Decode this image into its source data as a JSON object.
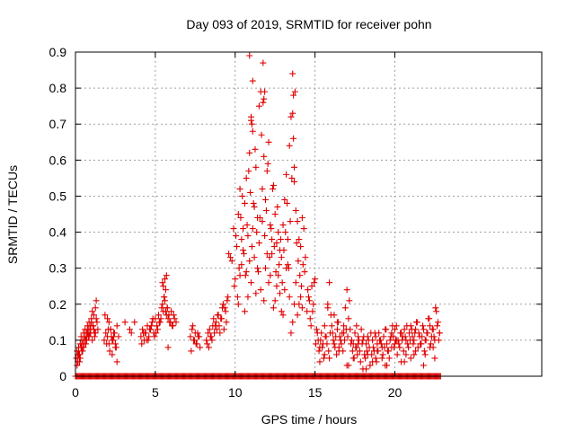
{
  "chart_data": {
    "type": "scatter",
    "title": "Day 093 of 2019, SRMTID for receiver pohn",
    "xlabel": "GPS time / hours",
    "ylabel": "SRMTID / TECUs",
    "xlim": [
      0,
      29.2
    ],
    "ylim": [
      0,
      0.9
    ],
    "xticks": [
      0,
      5,
      10,
      15,
      20
    ],
    "xtick_labels": [
      "0",
      "5",
      "10",
      "15",
      "20"
    ],
    "yticks": [
      0,
      0.1,
      0.2,
      0.3,
      0.4,
      0.5,
      0.6,
      0.7,
      0.8,
      0.9
    ],
    "ytick_labels": [
      "0",
      "0.1",
      "0.2",
      "0.3",
      "0.4",
      "0.5",
      "0.6",
      "0.7",
      "0.8",
      "0.9"
    ],
    "grid": true,
    "marker": "+",
    "series": [
      {
        "name": "SRMTID",
        "color": "#e00000",
        "x": [
          0.05,
          0.1,
          0.15,
          0.2,
          0.25,
          0.3,
          0.35,
          0.4,
          0.45,
          0.5,
          0.55,
          0.6,
          0.65,
          0.7,
          0.75,
          0.8,
          0.85,
          0.9,
          0.95,
          1.0,
          1.05,
          1.1,
          1.15,
          1.2,
          1.25,
          1.3,
          1.35,
          1.4,
          0.1,
          0.2,
          0.3,
          0.4,
          0.5,
          0.6,
          0.7,
          0.8,
          0.9,
          1.0,
          1.1,
          1.2,
          1.3,
          0.15,
          0.25,
          0.35,
          0.45,
          0.55,
          0.65,
          0.75,
          0.85,
          0.95,
          1.05,
          1.15,
          1.25,
          1.8,
          1.9,
          2.0,
          2.1,
          2.2,
          2.3,
          2.4,
          2.5,
          2.6,
          2.7,
          1.85,
          1.95,
          2.05,
          2.15,
          2.25,
          2.35,
          2.45,
          2.55,
          2.1,
          2.3,
          2.5,
          2.2,
          2.4,
          2.0,
          2.6,
          3.1,
          3.4,
          3.5,
          3.7,
          4.1,
          4.2,
          4.3,
          4.4,
          4.5,
          4.6,
          4.7,
          4.8,
          4.9,
          5.0,
          5.1,
          5.2,
          5.3,
          5.4,
          5.5,
          5.6,
          5.7,
          5.8,
          5.9,
          6.0,
          6.1,
          6.2,
          4.15,
          4.35,
          4.55,
          4.75,
          4.95,
          5.15,
          5.35,
          5.55,
          5.75,
          5.95,
          6.15,
          6.3,
          4.25,
          4.45,
          4.65,
          4.85,
          5.05,
          5.25,
          5.45,
          5.65,
          5.85,
          6.05,
          5.5,
          5.6,
          5.7,
          5.55,
          5.65,
          5.45,
          5.75,
          5.8,
          7.2,
          7.3,
          7.4,
          7.5,
          7.6,
          7.7,
          7.8,
          7.25,
          7.45,
          7.65,
          7.35,
          7.55,
          7.75,
          8.2,
          8.3,
          8.4,
          8.5,
          8.6,
          8.7,
          8.8,
          8.9,
          9.0,
          9.1,
          9.2,
          9.3,
          9.4,
          9.5,
          8.25,
          8.45,
          8.65,
          8.85,
          9.05,
          9.25,
          9.45,
          8.35,
          8.55,
          8.75,
          8.95,
          9.15,
          9.35,
          9.55,
          9.6,
          9.7,
          9.8,
          9.9,
          10.0,
          10.1,
          10.2,
          10.3,
          10.4,
          10.5,
          10.6,
          10.7,
          10.8,
          10.9,
          11.0,
          11.1,
          11.2,
          11.3,
          11.4,
          11.5,
          11.6,
          11.7,
          11.8,
          11.9,
          12.0,
          12.1,
          12.2,
          12.3,
          12.4,
          12.5,
          12.6,
          12.7,
          12.8,
          12.9,
          13.0,
          13.1,
          13.2,
          13.3,
          13.4,
          13.5,
          13.6,
          13.7,
          13.8,
          13.9,
          14.0,
          14.1,
          14.2,
          14.3,
          14.4,
          9.95,
          10.05,
          10.15,
          10.25,
          10.35,
          10.45,
          10.55,
          10.65,
          10.75,
          10.85,
          10.95,
          11.05,
          11.15,
          11.25,
          11.35,
          11.45,
          11.55,
          11.65,
          11.75,
          11.85,
          11.95,
          12.05,
          12.15,
          12.25,
          12.35,
          12.45,
          12.55,
          12.65,
          12.75,
          12.85,
          12.95,
          13.05,
          13.15,
          13.25,
          13.35,
          13.45,
          13.55,
          13.65,
          13.75,
          13.85,
          13.95,
          14.05,
          14.15,
          14.25,
          14.35,
          10.2,
          10.4,
          10.6,
          10.8,
          11.0,
          11.2,
          11.4,
          11.6,
          11.8,
          12.0,
          12.2,
          12.4,
          12.6,
          12.8,
          13.0,
          13.2,
          13.4,
          13.6,
          13.8,
          14.0,
          14.2,
          10.3,
          10.5,
          10.7,
          10.9,
          11.1,
          11.3,
          11.5,
          11.7,
          11.9,
          12.1,
          12.3,
          12.5,
          12.7,
          12.9,
          13.1,
          13.3,
          13.5,
          13.7,
          13.9,
          14.1,
          10.9,
          11.1,
          11.8,
          11.75,
          11.85,
          13.6,
          13.65,
          11.0,
          11.05,
          13.7,
          14.5,
          14.6,
          14.7,
          14.8,
          14.9,
          15.0,
          15.1,
          15.2,
          15.3,
          15.4,
          15.5,
          15.6,
          15.7,
          15.8,
          15.9,
          16.0,
          16.1,
          16.2,
          16.3,
          16.4,
          16.5,
          16.6,
          16.7,
          16.8,
          16.9,
          17.0,
          17.1,
          17.2,
          17.3,
          17.4,
          17.5,
          17.6,
          17.7,
          17.8,
          17.9,
          18.0,
          18.1,
          18.2,
          18.3,
          18.4,
          18.5,
          18.6,
          18.7,
          18.8,
          18.9,
          19.0,
          19.1,
          19.2,
          19.3,
          19.4,
          19.5,
          19.6,
          19.7,
          19.8,
          19.9,
          20.0,
          20.1,
          20.2,
          20.3,
          20.4,
          20.5,
          20.6,
          20.7,
          20.8,
          20.9,
          21.0,
          21.1,
          21.2,
          21.3,
          21.4,
          21.5,
          21.6,
          21.7,
          21.8,
          21.9,
          22.0,
          22.1,
          22.2,
          22.3,
          22.4,
          22.5,
          22.6,
          22.7,
          22.8,
          14.55,
          14.65,
          14.75,
          14.85,
          14.95,
          15.05,
          15.15,
          15.25,
          15.35,
          15.45,
          15.55,
          15.65,
          15.75,
          15.85,
          15.95,
          16.05,
          16.15,
          16.25,
          16.35,
          16.45,
          16.55,
          16.65,
          16.75,
          16.85,
          16.95,
          17.05,
          17.15,
          17.25,
          17.35,
          17.45,
          17.55,
          17.65,
          17.75,
          17.85,
          17.95,
          18.05,
          18.15,
          18.25,
          18.35,
          18.45,
          18.55,
          18.65,
          18.75,
          18.85,
          18.95,
          19.05,
          19.15,
          19.25,
          19.35,
          19.45,
          19.55,
          19.65,
          19.75,
          19.85,
          19.95,
          20.05,
          20.15,
          20.25,
          20.35,
          20.45,
          20.55,
          20.65,
          20.75,
          20.85,
          20.95,
          21.05,
          21.15,
          21.25,
          21.35,
          21.45,
          21.55,
          21.65,
          21.75,
          21.85,
          21.95,
          22.05,
          22.15,
          22.25,
          22.35,
          22.45,
          22.55,
          22.65,
          22.75,
          15.3,
          15.6,
          15.9,
          16.2,
          16.5,
          16.8,
          17.1,
          17.4,
          17.7,
          18.0,
          18.3,
          18.6,
          18.9,
          19.2,
          19.5,
          19.8,
          20.1,
          20.4,
          20.7,
          21.0,
          21.3,
          21.6,
          21.9,
          22.2,
          22.5,
          22.8,
          15.8,
          16.4,
          17.0,
          17.6,
          18.2,
          18.8,
          19.4,
          20.0,
          20.6,
          21.2,
          21.8,
          22.4
        ],
        "y": [
          0.05,
          0.07,
          0.04,
          0.08,
          0.06,
          0.09,
          0.11,
          0.07,
          0.1,
          0.12,
          0.09,
          0.13,
          0.1,
          0.12,
          0.14,
          0.11,
          0.15,
          0.13,
          0.12,
          0.16,
          0.18,
          0.14,
          0.17,
          0.12,
          0.19,
          0.21,
          0.15,
          0.13,
          0.03,
          0.06,
          0.05,
          0.09,
          0.08,
          0.11,
          0.1,
          0.13,
          0.12,
          0.15,
          0.14,
          0.11,
          0.16,
          0.06,
          0.04,
          0.08,
          0.07,
          0.1,
          0.09,
          0.12,
          0.11,
          0.14,
          0.1,
          0.13,
          0.12,
          0.1,
          0.12,
          0.11,
          0.09,
          0.13,
          0.1,
          0.12,
          0.08,
          0.14,
          0.11,
          0.17,
          0.09,
          0.13,
          0.07,
          0.11,
          0.1,
          0.12,
          0.08,
          0.15,
          0.06,
          0.09,
          0.13,
          0.11,
          0.16,
          0.04,
          0.15,
          0.13,
          0.12,
          0.15,
          0.11,
          0.13,
          0.1,
          0.12,
          0.14,
          0.11,
          0.13,
          0.15,
          0.12,
          0.16,
          0.14,
          0.17,
          0.15,
          0.19,
          0.18,
          0.21,
          0.17,
          0.16,
          0.15,
          0.18,
          0.14,
          0.16,
          0.09,
          0.12,
          0.1,
          0.14,
          0.11,
          0.13,
          0.16,
          0.22,
          0.19,
          0.15,
          0.17,
          0.15,
          0.12,
          0.1,
          0.13,
          0.16,
          0.12,
          0.15,
          0.2,
          0.24,
          0.17,
          0.14,
          0.25,
          0.27,
          0.28,
          0.22,
          0.18,
          0.26,
          0.19,
          0.08,
          0.11,
          0.13,
          0.1,
          0.12,
          0.09,
          0.11,
          0.08,
          0.07,
          0.1,
          0.12,
          0.14,
          0.09,
          0.11,
          0.1,
          0.12,
          0.13,
          0.11,
          0.14,
          0.12,
          0.15,
          0.17,
          0.14,
          0.16,
          0.19,
          0.13,
          0.18,
          0.21,
          0.09,
          0.11,
          0.16,
          0.13,
          0.12,
          0.2,
          0.15,
          0.08,
          0.1,
          0.14,
          0.17,
          0.16,
          0.19,
          0.22,
          0.34,
          0.33,
          0.32,
          0.41,
          0.27,
          0.36,
          0.45,
          0.52,
          0.38,
          0.41,
          0.48,
          0.55,
          0.39,
          0.62,
          0.71,
          0.68,
          0.47,
          0.58,
          0.44,
          0.75,
          0.79,
          0.52,
          0.61,
          0.49,
          0.57,
          0.65,
          0.42,
          0.38,
          0.53,
          0.45,
          0.37,
          0.4,
          0.35,
          0.33,
          0.42,
          0.49,
          0.56,
          0.38,
          0.64,
          0.72,
          0.84,
          0.54,
          0.46,
          0.43,
          0.38,
          0.36,
          0.44,
          0.41,
          0.33,
          0.25,
          0.39,
          0.22,
          0.3,
          0.44,
          0.5,
          0.34,
          0.28,
          0.42,
          0.57,
          0.51,
          0.36,
          0.48,
          0.63,
          0.4,
          0.29,
          0.44,
          0.67,
          0.87,
          0.39,
          0.46,
          0.59,
          0.33,
          0.41,
          0.52,
          0.36,
          0.29,
          0.47,
          0.31,
          0.38,
          0.26,
          0.35,
          0.4,
          0.48,
          0.3,
          0.43,
          0.55,
          0.66,
          0.79,
          0.37,
          0.32,
          0.28,
          0.25,
          0.31,
          0.29,
          0.2,
          0.31,
          0.18,
          0.22,
          0.26,
          0.33,
          0.3,
          0.24,
          0.21,
          0.34,
          0.28,
          0.19,
          0.25,
          0.23,
          0.17,
          0.3,
          0.22,
          0.15,
          0.26,
          0.2,
          0.19,
          0.28,
          0.35,
          0.29,
          0.32,
          0.41,
          0.23,
          0.37,
          0.43,
          0.3,
          0.26,
          0.34,
          0.21,
          0.28,
          0.18,
          0.24,
          0.31,
          0.12,
          0.2,
          0.17,
          0.22,
          0.89,
          0.82,
          0.77,
          0.76,
          0.79,
          0.73,
          0.78,
          0.72,
          0.7,
          0.58,
          0.18,
          0.22,
          0.16,
          0.25,
          0.2,
          0.27,
          0.13,
          0.1,
          0.08,
          0.12,
          0.09,
          0.14,
          0.11,
          0.19,
          0.26,
          0.17,
          0.12,
          0.09,
          0.11,
          0.13,
          0.08,
          0.1,
          0.12,
          0.14,
          0.19,
          0.24,
          0.16,
          0.13,
          0.1,
          0.09,
          0.12,
          0.08,
          0.11,
          0.07,
          0.13,
          0.1,
          0.06,
          0.09,
          0.11,
          0.08,
          0.12,
          0.1,
          0.07,
          0.05,
          0.09,
          0.12,
          0.1,
          0.08,
          0.11,
          0.13,
          0.09,
          0.07,
          0.1,
          0.12,
          0.11,
          0.09,
          0.14,
          0.1,
          0.08,
          0.12,
          0.11,
          0.13,
          0.1,
          0.09,
          0.12,
          0.14,
          0.11,
          0.1,
          0.13,
          0.15,
          0.12,
          0.09,
          0.11,
          0.13,
          0.1,
          0.12,
          0.16,
          0.14,
          0.11,
          0.13,
          0.1,
          0.18,
          0.15,
          0.12,
          0.24,
          0.21,
          0.14,
          0.18,
          0.26,
          0.09,
          0.12,
          0.07,
          0.1,
          0.08,
          0.05,
          0.11,
          0.09,
          0.07,
          0.12,
          0.14,
          0.1,
          0.08,
          0.06,
          0.15,
          0.11,
          0.09,
          0.07,
          0.1,
          0.13,
          0.11,
          0.21,
          0.09,
          0.07,
          0.05,
          0.08,
          0.06,
          0.1,
          0.04,
          0.09,
          0.11,
          0.05,
          0.07,
          0.1,
          0.03,
          0.06,
          0.08,
          0.12,
          0.04,
          0.07,
          0.1,
          0.09,
          0.06,
          0.08,
          0.13,
          0.07,
          0.05,
          0.11,
          0.14,
          0.08,
          0.1,
          0.06,
          0.09,
          0.12,
          0.1,
          0.07,
          0.11,
          0.14,
          0.08,
          0.1,
          0.13,
          0.09,
          0.12,
          0.15,
          0.08,
          0.11,
          0.09,
          0.14,
          0.07,
          0.1,
          0.12,
          0.16,
          0.09,
          0.13,
          0.11,
          0.19,
          0.14,
          0.1,
          0.04,
          0.06,
          0.05,
          0.17,
          0.07,
          0.12,
          0.03,
          0.05,
          0.09,
          0.02,
          0.06,
          0.04,
          0.07,
          0.05,
          0.03,
          0.08,
          0.1,
          0.04,
          0.06,
          0.05,
          0.07,
          0.09,
          0.06,
          0.08,
          0.05,
          0.12,
          0.2,
          0.15,
          0.03,
          0.14,
          0.02,
          0.11,
          0.03,
          0.13,
          0.04,
          0.06,
          0.03,
          0.08
        ],
        "zero_band": {
          "from": 0.0,
          "to": 22.9,
          "value": 0
        }
      }
    ]
  }
}
